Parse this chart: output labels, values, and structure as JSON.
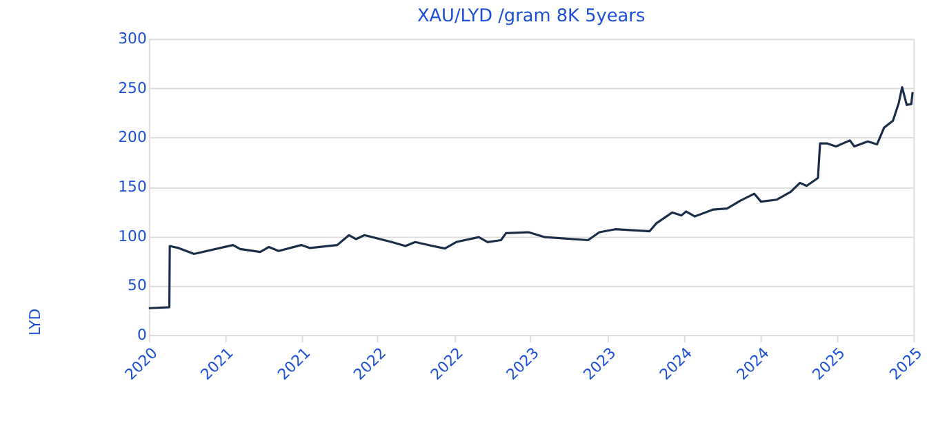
{
  "chart_data": {
    "type": "line",
    "title": "XAU/LYD /gram 8K 5years",
    "ylabel": "LYD",
    "x": [
      "2020-11-01",
      "2020-12-20",
      "2020-12-21",
      "2021-01-11",
      "2021-02-17",
      "2021-05-21",
      "2021-06-07",
      "2021-07-25",
      "2021-08-15",
      "2021-09-07",
      "2021-10-31",
      "2021-11-21",
      "2022-01-25",
      "2022-02-22",
      "2022-03-11",
      "2022-03-31",
      "2022-06-04",
      "2022-07-07",
      "2022-07-30",
      "2022-09-10",
      "2022-10-09",
      "2022-11-05",
      "2022-12-29",
      "2023-01-19",
      "2023-02-20",
      "2023-03-04",
      "2023-04-27",
      "2023-06-05",
      "2023-09-16",
      "2023-10-13",
      "2023-11-20",
      "2024-02-10",
      "2024-02-26",
      "2024-04-04",
      "2024-04-26",
      "2024-05-07",
      "2024-05-28",
      "2024-07-11",
      "2024-08-13",
      "2024-09-14",
      "2024-10-17",
      "2024-11-02",
      "2024-12-10",
      "2025-01-12",
      "2025-02-03",
      "2025-02-19",
      "2025-03-18",
      "2025-03-23",
      "2025-04-09",
      "2025-04-30",
      "2025-06-02",
      "2025-06-13",
      "2025-07-15",
      "2025-08-06",
      "2025-08-23",
      "2025-09-13",
      "2025-09-27",
      "2025-10-05",
      "2025-10-16",
      "2025-10-27",
      "2025-10-30"
    ],
    "series": [
      {
        "color": "#1a2e4a",
        "values": [
          27,
          28,
          90,
          88,
          82,
          91,
          87,
          84,
          89,
          85,
          91,
          88,
          91,
          101,
          97,
          101,
          94,
          90,
          94,
          90,
          87.5,
          94,
          99,
          94,
          96,
          103,
          104,
          99,
          96,
          104,
          107,
          105,
          113,
          124,
          121,
          125,
          120,
          127,
          128,
          136,
          143,
          135,
          137,
          145,
          154,
          151,
          159,
          194,
          194,
          191,
          197,
          191,
          196,
          193,
          210,
          217,
          235,
          251,
          233,
          234,
          246
        ]
      }
    ],
    "xlim": [
      "2020-11-01",
      "2025-11-01"
    ],
    "xticks": [
      {
        "value": "2020-11-01",
        "label": "2020"
      },
      {
        "value": "2021-05-01",
        "label": "2021"
      },
      {
        "value": "2021-11-01",
        "label": "2021"
      },
      {
        "value": "2022-05-01",
        "label": "2022"
      },
      {
        "value": "2022-11-01",
        "label": "2022"
      },
      {
        "value": "2023-05-01",
        "label": "2023"
      },
      {
        "value": "2023-11-01",
        "label": "2023"
      },
      {
        "value": "2024-05-01",
        "label": "2024"
      },
      {
        "value": "2024-11-01",
        "label": "2024"
      },
      {
        "value": "2025-05-01",
        "label": "2025"
      },
      {
        "value": "2025-11-01",
        "label": "2025"
      }
    ],
    "ylim": [
      0,
      300
    ],
    "yticks": [
      0,
      50,
      100,
      150,
      200,
      250,
      300
    ],
    "grid": "y",
    "legend": false,
    "marker": "none",
    "line_style": "solid"
  }
}
